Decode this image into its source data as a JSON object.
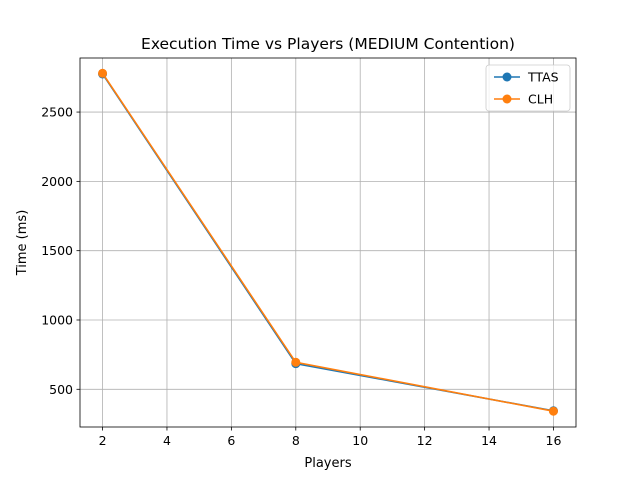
{
  "chart_data": {
    "type": "line",
    "title": "Execution Time vs Players (MEDIUM Contention)",
    "xlabel": "Players",
    "ylabel": "Time (ms)",
    "x": [
      2,
      8,
      16
    ],
    "series": [
      {
        "name": "TTAS",
        "values": [
          2775,
          685,
          345
        ],
        "color": "#1f77b4"
      },
      {
        "name": "CLH",
        "values": [
          2780,
          695,
          342
        ],
        "color": "#ff7f0e"
      }
    ],
    "xlim": [
      1.3,
      16.7
    ],
    "ylim": [
      228,
      2890
    ],
    "xticks": [
      2,
      4,
      6,
      8,
      10,
      12,
      14,
      16
    ],
    "yticks": [
      500,
      1000,
      1500,
      2000,
      2500
    ],
    "grid": true,
    "legend_position": "top-right",
    "marker": "circle"
  }
}
